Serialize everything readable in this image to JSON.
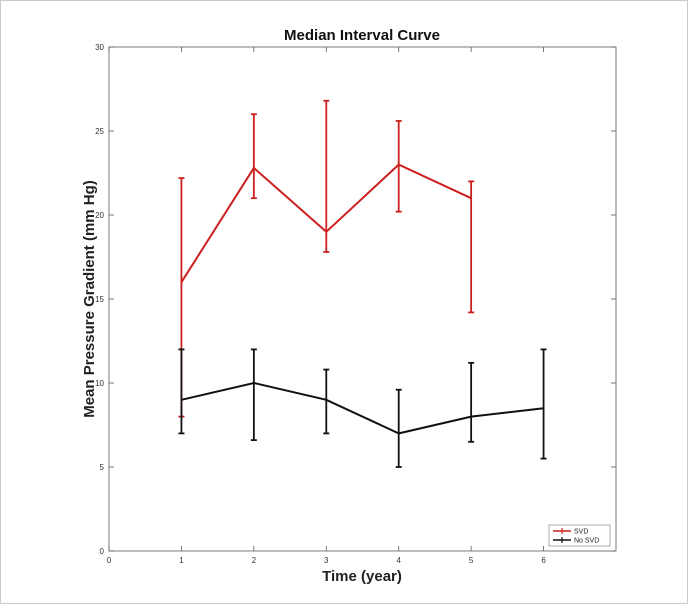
{
  "chart_data": {
    "type": "line",
    "title": "Median Interval Curve",
    "xlabel": "Time (year)",
    "ylabel": "Mean Pressure Gradient (mm Hg)",
    "xlim": [
      0,
      7
    ],
    "ylim": [
      0,
      30
    ],
    "xticks": [
      0,
      1,
      2,
      3,
      4,
      5,
      6
    ],
    "yticks": [
      0,
      5,
      10,
      15,
      20,
      25,
      30
    ],
    "grid": false,
    "legend_position": "bottom-right",
    "series": [
      {
        "name": "SVD",
        "color": "#cc1f1f",
        "x": [
          1,
          2,
          3,
          4,
          5
        ],
        "y": [
          16,
          22.8,
          19,
          23,
          21
        ],
        "err_low": [
          8,
          21,
          17.8,
          20.2,
          14.2
        ],
        "err_high": [
          22.2,
          26,
          26.8,
          25.6,
          22
        ]
      },
      {
        "name": "No SVD",
        "color": "#111111",
        "x": [
          1,
          2,
          3,
          4,
          5,
          6
        ],
        "y": [
          9,
          10,
          9,
          7,
          8,
          8.5
        ],
        "err_low": [
          7,
          6.6,
          7,
          5,
          6.5,
          5.5
        ],
        "err_high": [
          12,
          12,
          10.8,
          9.6,
          11.2,
          12
        ]
      }
    ]
  }
}
